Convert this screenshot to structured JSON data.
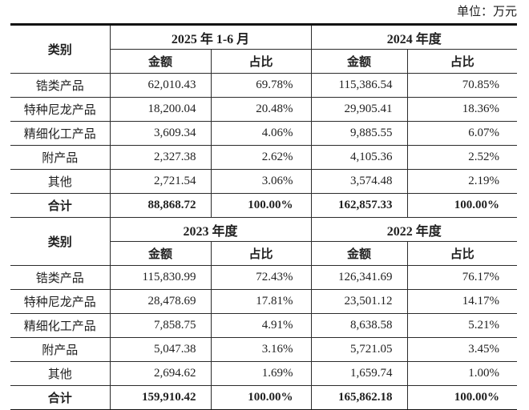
{
  "unit_label": "单位：万元",
  "text_color": "#1f1f1f",
  "border_color": "#2b2b2b",
  "thick_border_color": "#111111",
  "tables": [
    {
      "category_header": "类别",
      "period_left": "2025 年 1-6 月",
      "period_right": "2024 年度",
      "amount_header": "金额",
      "ratio_header": "占比",
      "rows": [
        {
          "category": "锆类产品",
          "amount1": "62,010.43",
          "ratio1": "69.78%",
          "amount2": "115,386.54",
          "ratio2": "70.85%"
        },
        {
          "category": "特种尼龙产品",
          "amount1": "18,200.04",
          "ratio1": "20.48%",
          "amount2": "29,905.41",
          "ratio2": "18.36%"
        },
        {
          "category": "精细化工产品",
          "amount1": "3,609.34",
          "ratio1": "4.06%",
          "amount2": "9,885.55",
          "ratio2": "6.07%"
        },
        {
          "category": "附产品",
          "amount1": "2,327.38",
          "ratio1": "2.62%",
          "amount2": "4,105.36",
          "ratio2": "2.52%"
        },
        {
          "category": "其他",
          "amount1": "2,721.54",
          "ratio1": "3.06%",
          "amount2": "3,574.48",
          "ratio2": "2.19%"
        },
        {
          "category": "合计",
          "amount1": "88,868.72",
          "ratio1": "100.00%",
          "amount2": "162,857.33",
          "ratio2": "100.00%",
          "is_total": true
        }
      ]
    },
    {
      "category_header": "类别",
      "period_left": "2023 年度",
      "period_right": "2022 年度",
      "amount_header": "金额",
      "ratio_header": "占比",
      "rows": [
        {
          "category": "锆类产品",
          "amount1": "115,830.99",
          "ratio1": "72.43%",
          "amount2": "126,341.69",
          "ratio2": "76.17%"
        },
        {
          "category": "特种尼龙产品",
          "amount1": "28,478.69",
          "ratio1": "17.81%",
          "amount2": "23,501.12",
          "ratio2": "14.17%"
        },
        {
          "category": "精细化工产品",
          "amount1": "7,858.75",
          "ratio1": "4.91%",
          "amount2": "8,638.58",
          "ratio2": "5.21%"
        },
        {
          "category": "附产品",
          "amount1": "5,047.38",
          "ratio1": "3.16%",
          "amount2": "5,721.05",
          "ratio2": "3.45%"
        },
        {
          "category": "其他",
          "amount1": "2,694.62",
          "ratio1": "1.69%",
          "amount2": "1,659.74",
          "ratio2": "1.00%"
        },
        {
          "category": "合计",
          "amount1": "159,910.42",
          "ratio1": "100.00%",
          "amount2": "165,862.18",
          "ratio2": "100.00%",
          "is_total": true
        }
      ]
    }
  ]
}
